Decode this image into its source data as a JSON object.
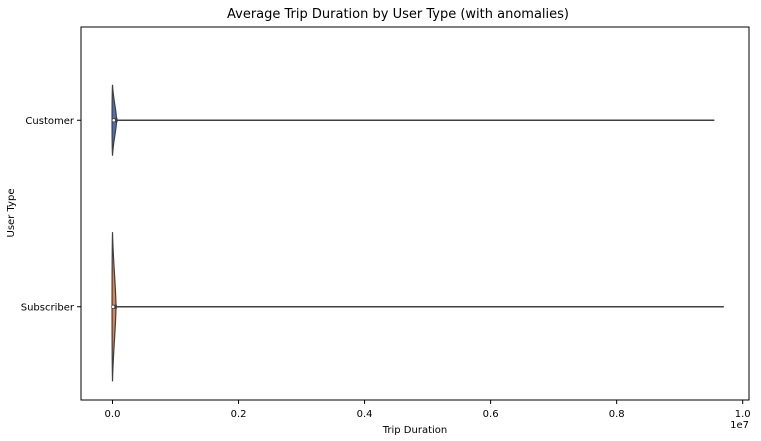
{
  "chart_data": {
    "type": "violin",
    "orientation": "horizontal",
    "title": "Average Trip Duration by User Type (with anomalies)",
    "xlabel": "Trip Duration",
    "ylabel": "User Type",
    "x_offset_text": "1e7",
    "x_scale_factor": 10000000,
    "xlim": [
      -0.05,
      1.01
    ],
    "x_ticks": [
      0.0,
      0.2,
      0.4,
      0.6,
      0.8,
      1.0
    ],
    "x_tick_labels": [
      "0.0",
      "0.2",
      "0.4",
      "0.6",
      "0.8",
      "1.0"
    ],
    "categories": [
      "Customer",
      "Subscriber"
    ],
    "grid": false,
    "series": [
      {
        "category": "Customer",
        "min": 0.0,
        "max": 0.955,
        "median": 0.002,
        "color": "#4c72b0",
        "violin_half_height": 0.38,
        "violin_peak_x": 0.003
      },
      {
        "category": "Subscriber",
        "min": 0.0,
        "max": 0.97,
        "median": 0.001,
        "color": "#dd8452",
        "violin_half_height": 0.8,
        "violin_peak_x": 0.002
      }
    ]
  }
}
